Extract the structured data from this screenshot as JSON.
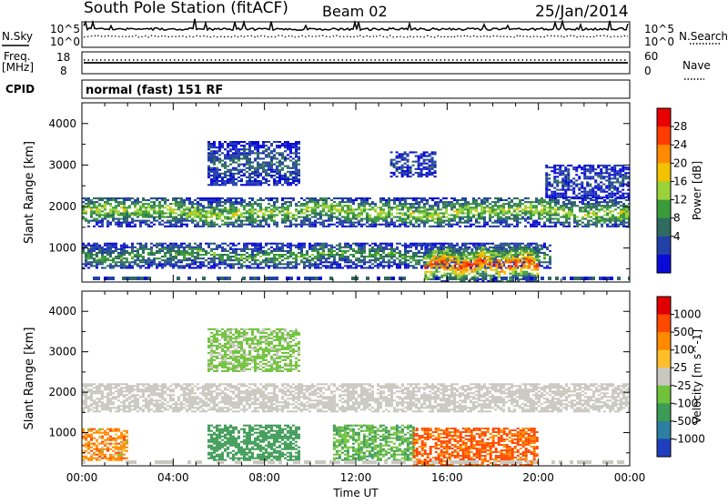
{
  "header": {
    "station": "South Pole Station (fitACF)",
    "beam": "Beam 02",
    "date": "25/Jan/2014"
  },
  "top_panels": {
    "nsky_label": "N.Sky",
    "nsky_ticks": [
      "10^5",
      "10^0"
    ],
    "nsearch_label": "N.Search",
    "nsearch_ticks": [
      "10^5",
      "10^0"
    ],
    "freq_label_1": "Freq.",
    "freq_label_2": "[MHz]",
    "freq_ticks": [
      "18",
      "8"
    ],
    "nave_label": "Nave",
    "nave_ticks": [
      "60",
      "0"
    ],
    "cpid_label": "CPID",
    "cpid_value": "normal (fast) 151 RF"
  },
  "chart_data": [
    {
      "type": "heatmap",
      "name_in_figure": "Power",
      "xlabel": "",
      "ylabel": "Slant Range [km]",
      "ylim": [
        180,
        4500
      ],
      "yticks": [
        1000,
        2000,
        3000,
        4000
      ],
      "ytick_labels": [
        "1000",
        "2000",
        "3000",
        "4000"
      ],
      "xlim_hours": [
        0,
        24
      ],
      "colorbar": {
        "title": "Power [dB]",
        "boundaries": [
          0,
          4,
          8,
          12,
          16,
          20,
          24,
          28,
          32
        ],
        "labels": [
          "4",
          "8",
          "12",
          "16",
          "20",
          "24",
          "28"
        ],
        "colors": [
          "#0a0ad8",
          "#2340a8",
          "#2f6b60",
          "#3b9b3b",
          "#9bd23a",
          "#f2c200",
          "#ff8a00",
          "#ff3b00",
          "#e80000"
        ]
      },
      "regions": [
        {
          "t": [
            0.0,
            24.0
          ],
          "range": [
            1500,
            2200
          ],
          "level": 16,
          "desc": "main band"
        },
        {
          "t": [
            5.5,
            9.5
          ],
          "range": [
            2500,
            3550
          ],
          "level": 8
        },
        {
          "t": [
            13.5,
            15.5
          ],
          "range": [
            2700,
            3300
          ],
          "level": 6
        },
        {
          "t": [
            20.3,
            24.0
          ],
          "range": [
            2200,
            3000
          ],
          "level": 6
        },
        {
          "t": [
            0.0,
            20.5
          ],
          "range": [
            500,
            1100
          ],
          "level": 12
        },
        {
          "t": [
            15.0,
            20.0
          ],
          "range": [
            180,
            1000
          ],
          "level": 26
        }
      ]
    },
    {
      "type": "heatmap",
      "name_in_figure": "Velocity",
      "xlabel": "Time UT",
      "ylabel": "Slant Range [km]",
      "ylim": [
        180,
        4500
      ],
      "yticks": [
        1000,
        2000,
        3000,
        4000
      ],
      "ytick_labels": [
        "1000",
        "2000",
        "3000",
        "4000"
      ],
      "xlim_hours": [
        0,
        24
      ],
      "xticks_hours": [
        0,
        4,
        8,
        12,
        16,
        20,
        24
      ],
      "xtick_labels": [
        "00:00",
        "04:00",
        "08:00",
        "12:00",
        "16:00",
        "20:00",
        "00:00"
      ],
      "colorbar": {
        "title": "Velocity [m s^-1]",
        "labels": [
          "1000",
          "500",
          "100",
          "25",
          "-25",
          "-100",
          "-500",
          "-1000"
        ],
        "colors": [
          "#1f3fbf",
          "#2d7fa0",
          "#3d9b55",
          "#6fc23a",
          "#c8c8c0",
          "#ffbf2a",
          "#ff8a00",
          "#ff4a00",
          "#e00000"
        ]
      },
      "regions": [
        {
          "t": [
            0.0,
            24.0
          ],
          "range": [
            1500,
            2200
          ],
          "vel": 0,
          "desc": "ground scatter"
        },
        {
          "t": [
            5.5,
            9.5
          ],
          "range": [
            2500,
            3550
          ],
          "vel": 50
        },
        {
          "t": [
            0.0,
            2.0
          ],
          "range": [
            300,
            1100
          ],
          "vel": -300
        },
        {
          "t": [
            5.5,
            9.5
          ],
          "range": [
            300,
            1200
          ],
          "vel": 150
        },
        {
          "t": [
            11.0,
            14.5
          ],
          "range": [
            300,
            1200
          ],
          "vel": 100
        },
        {
          "t": [
            14.5,
            20.0
          ],
          "range": [
            180,
            1100
          ],
          "vel": -600
        }
      ]
    }
  ],
  "colors": {
    "background": "#ffffff",
    "axes": "#000000"
  }
}
